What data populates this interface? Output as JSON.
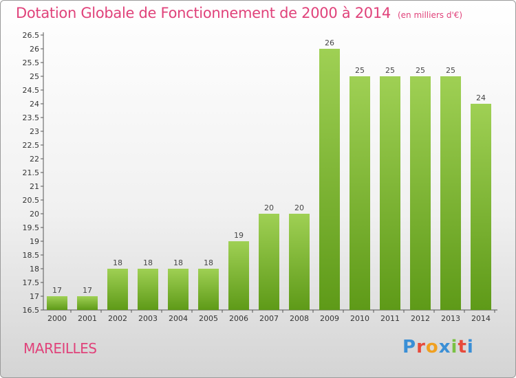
{
  "title": "Dotation Globale de Fonctionnement de 2000 à 2014",
  "unit": "(en milliers d'€)",
  "commune": "MAREILLES",
  "logo": "Proxiti",
  "colors": {
    "title": "#e0427a",
    "bar_light": "#9fd054",
    "bar_dark": "#5e9a18",
    "logo": [
      "#3a8fd6",
      "#e74a3b",
      "#f0a020",
      "#3a8fd6",
      "#7ac143",
      "#e74a3b",
      "#3a8fd6"
    ]
  },
  "chart_data": {
    "type": "bar",
    "title": "Dotation Globale de Fonctionnement de 2000 à 2014",
    "subtitle": "(en milliers d'€)",
    "categories": [
      "2000",
      "2001",
      "2002",
      "2003",
      "2004",
      "2005",
      "2006",
      "2007",
      "2008",
      "2009",
      "2010",
      "2011",
      "2012",
      "2013",
      "2014"
    ],
    "values": [
      17,
      17,
      18,
      18,
      18,
      18,
      19,
      20,
      20,
      26,
      25,
      25,
      25,
      25,
      24
    ],
    "data_labels": [
      "17",
      "17",
      "18",
      "18",
      "18",
      "18",
      "19",
      "20",
      "20",
      "26",
      "25",
      "25",
      "25",
      "25",
      "24"
    ],
    "ylim": [
      16.5,
      26.5
    ],
    "yticks": [
      "16.5",
      "17",
      "17.5",
      "18",
      "18.5",
      "19",
      "19.5",
      "20",
      "20.5",
      "21",
      "21.5",
      "22",
      "22.5",
      "23",
      "23.5",
      "24",
      "24.5",
      "25",
      "25.5",
      "26",
      "26.5"
    ],
    "grid": false,
    "legend": "none"
  }
}
